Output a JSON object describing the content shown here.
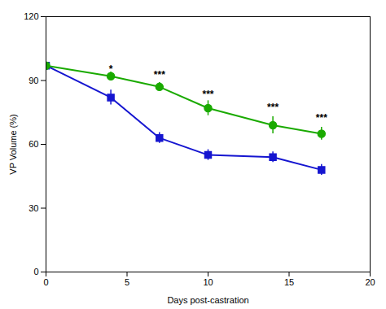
{
  "chart_data": {
    "type": "line",
    "xlabel": "Days post-castration",
    "ylabel": "VP Volume (%)",
    "x": [
      0,
      4,
      7,
      10,
      14,
      17
    ],
    "series": [
      {
        "color": "#1515d0",
        "marker": "square",
        "values": [
          97,
          82,
          63,
          55,
          54,
          48
        ],
        "yerr": [
          1.5,
          3.5,
          2.5,
          2.5,
          2.5,
          2.5
        ]
      },
      {
        "color": "#1aaa00",
        "marker": "circle",
        "values": [
          97,
          92,
          87,
          77,
          69,
          65
        ],
        "yerr": [
          1.5,
          2.0,
          2.0,
          3.5,
          4.0,
          3.0
        ]
      }
    ],
    "annotations": [
      {
        "x": 4,
        "y": 94,
        "text": "*"
      },
      {
        "x": 7,
        "y": 91,
        "text": "***"
      },
      {
        "x": 10,
        "y": 82,
        "text": "***"
      },
      {
        "x": 14,
        "y": 76,
        "text": "***"
      },
      {
        "x": 17,
        "y": 71,
        "text": "***"
      }
    ],
    "xlim": [
      0,
      20
    ],
    "ylim": [
      0,
      120
    ],
    "xticks": [
      0,
      5,
      10,
      15,
      20
    ],
    "yticks": [
      0,
      30,
      60,
      90,
      120
    ],
    "grid": false
  }
}
